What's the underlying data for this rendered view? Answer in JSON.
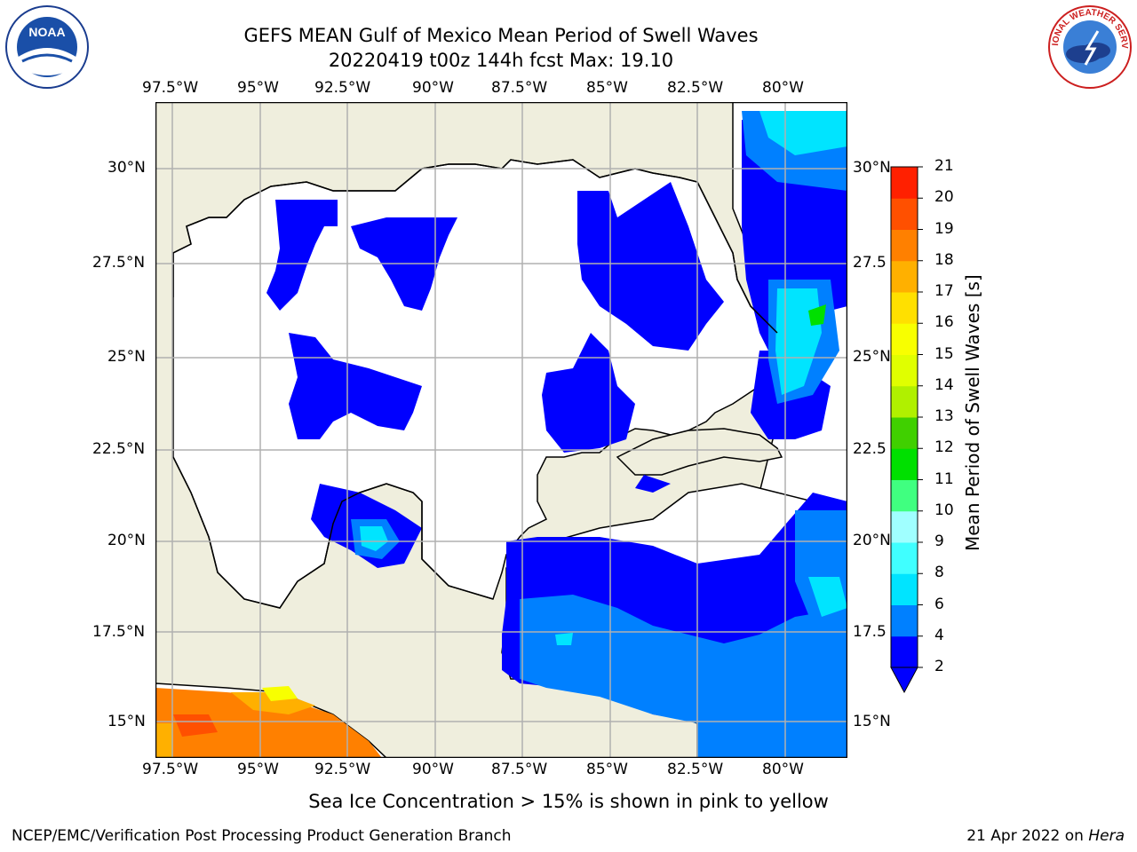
{
  "title_line1": "GEFS MEAN Gulf of Mexico Mean Period of Swell Waves",
  "title_line2": "20220419 t00z 144h fcst   Max: 19.10",
  "logos": {
    "left": "NOAA",
    "right": "NATIONAL WEATHER SERVICE"
  },
  "map": {
    "lon_ticks": [
      "97.5°W",
      "95°W",
      "92.5°W",
      "90°W",
      "87.5°W",
      "85°W",
      "82.5°W",
      "80°W"
    ],
    "lat_ticks": [
      "30°N",
      "27.5°N",
      "25°N",
      "22.5°N",
      "20°N",
      "17.5°N",
      "15°N"
    ],
    "right_lat_ticks": [
      "30°N",
      "27.5",
      "25°N",
      "22.5",
      "20°N",
      "17.5",
      "15°N"
    ],
    "colors": {
      "land": "#efeedd",
      "ocean": "#ffffff",
      "grid": "#b0b0b0",
      "coast": "#000000"
    }
  },
  "colorbar": {
    "label": "Mean Period of Swell Waves [s]",
    "ticks": [
      "2",
      "4",
      "6",
      "8",
      "9",
      "10",
      "11",
      "12",
      "13",
      "14",
      "15",
      "16",
      "17",
      "18",
      "19",
      "20",
      "21"
    ],
    "colors": [
      "#0000ff",
      "#0080ff",
      "#00e4ff",
      "#40ffff",
      "#a0ffff",
      "#40ff80",
      "#00e000",
      "#40d000",
      "#b0f000",
      "#e0ff00",
      "#f8ff00",
      "#ffe000",
      "#ffb000",
      "#ff8000",
      "#ff5000",
      "#ff2000"
    ],
    "extend_color": "#0000ff"
  },
  "note": "Sea Ice Concentration > 15% is shown in pink to yellow",
  "footer_left": "NCEP/EMC/Verification Post Processing Product Generation Branch",
  "footer_right_date": "21 Apr 2022 on ",
  "footer_right_host": "Hera"
}
